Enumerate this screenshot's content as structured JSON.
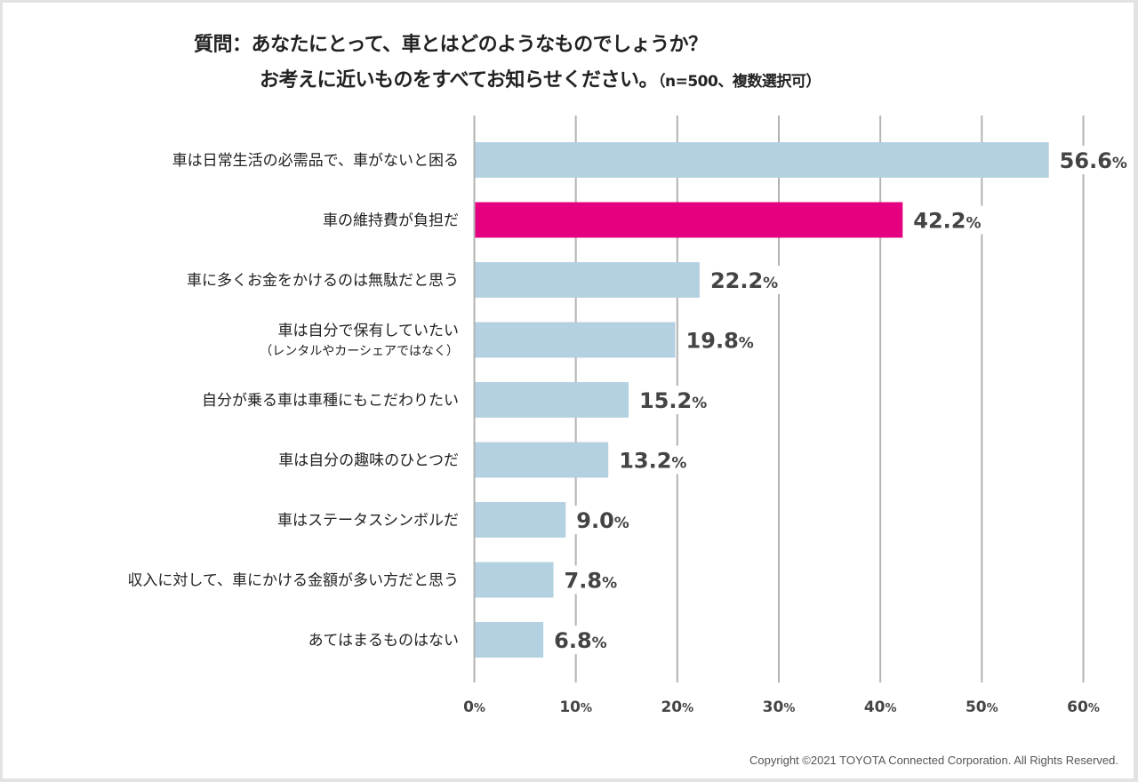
{
  "chart_data": {
    "type": "bar",
    "orientation": "horizontal",
    "title": {
      "line1": "質問：あなたにとって、車とはどのようなものでしょうか？",
      "line2": "お考えに近いものをすべてお知らせください。",
      "note": "（n=500、複数選択可）"
    },
    "categories": [
      {
        "label": "車は日常生活の必需品で、車がないと困る",
        "sub": ""
      },
      {
        "label": "車の維持費が負担だ",
        "sub": ""
      },
      {
        "label": "車に多くお金をかけるのは無駄だと思う",
        "sub": ""
      },
      {
        "label": "車は自分で保有していたい",
        "sub": "（レンタルやカーシェアではなく）"
      },
      {
        "label": "自分が乗る車は車種にもこだわりたい",
        "sub": ""
      },
      {
        "label": "車は自分の趣味のひとつだ",
        "sub": ""
      },
      {
        "label": "車はステータスシンボルだ",
        "sub": ""
      },
      {
        "label": "収入に対して、車にかける金額が多い方だと思う",
        "sub": ""
      },
      {
        "label": "あてはまるものはない",
        "sub": ""
      }
    ],
    "values": [
      56.6,
      42.2,
      22.2,
      19.8,
      15.2,
      13.2,
      9.0,
      7.8,
      6.8
    ],
    "value_labels": [
      "56.6",
      "42.2",
      "22.2",
      "19.8",
      "15.2",
      "13.2",
      "9.0",
      "7.8",
      "6.8"
    ],
    "highlight_index": 1,
    "unit": "%",
    "xlim": [
      0,
      60
    ],
    "xticks": [
      0,
      10,
      20,
      30,
      40,
      50,
      60
    ],
    "xtick_labels": [
      "0",
      "10",
      "20",
      "30",
      "40",
      "50",
      "60"
    ],
    "grid": true,
    "xlabel": "",
    "ylabel": "",
    "legend": "none",
    "colors": {
      "bar": "#b4d1e1",
      "highlight": "#e4007f",
      "grid": "#b3b3b3",
      "label_text": "#444444"
    }
  },
  "footer": {
    "copyright": "Copyright ©2021 TOYOTA Connected Corporation. All Rights Reserved."
  }
}
